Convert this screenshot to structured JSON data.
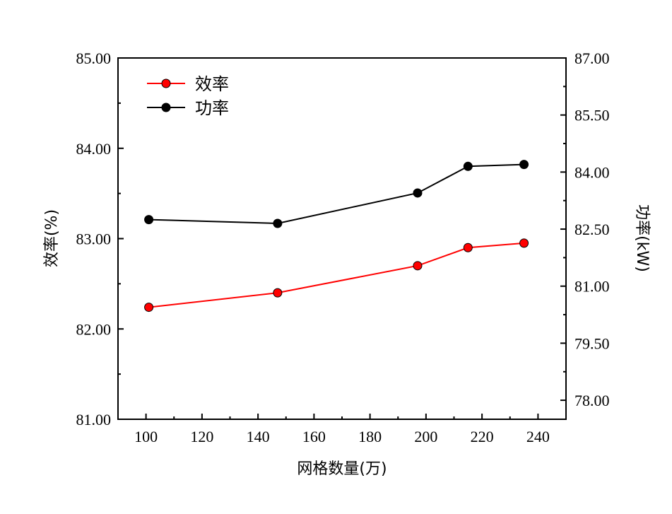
{
  "chart_data": {
    "type": "line",
    "xlabel": "网格数量(万)",
    "ylabel_left": "效率(%)",
    "ylabel_right": "功率(kW)",
    "xlim": [
      90,
      250
    ],
    "xticks": [
      100,
      120,
      140,
      160,
      180,
      200,
      220,
      240
    ],
    "ylim_left": [
      81.0,
      85.0
    ],
    "yticks_left": [
      "81.00",
      "82.00",
      "83.00",
      "84.00",
      "85.00"
    ],
    "ylim_right": [
      77.5,
      87.0
    ],
    "yticks_right": [
      "78.00",
      "79.50",
      "81.00",
      "82.50",
      "84.00",
      "85.50",
      "87.00"
    ],
    "x": [
      101,
      147,
      197,
      215,
      235
    ],
    "series": [
      {
        "name": "效率",
        "axis": "left",
        "color": "#ff0000",
        "values": [
          82.24,
          82.4,
          82.7,
          82.9,
          82.95
        ]
      },
      {
        "name": "功率",
        "axis": "right",
        "color": "#000000",
        "values": [
          82.75,
          82.65,
          83.45,
          84.15,
          84.2
        ]
      }
    ],
    "legend_position": "top-left",
    "grid": false
  }
}
